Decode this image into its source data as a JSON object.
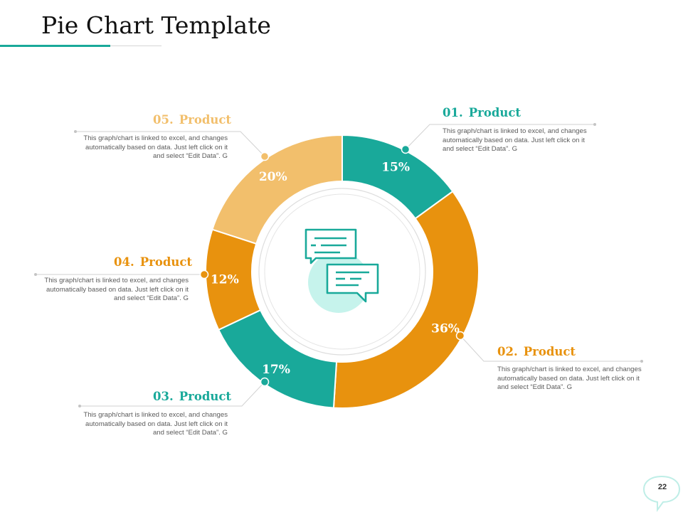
{
  "title": "Pie Chart Template",
  "page_number": "22",
  "colors": {
    "teal": "#19a99a",
    "orange": "#e8920e",
    "light_orange": "#f2bf6c"
  },
  "chart_data": {
    "type": "pie",
    "subtype": "donut",
    "center_icon": "chat-bubbles-icon",
    "slices": [
      {
        "num": "01.",
        "label": "Product",
        "value": 15,
        "value_label": "15%",
        "color": "#19a99a",
        "description": "This graph/chart is linked to excel, and changes automatically based on data. Just left click on it and select “Edit Data”. G"
      },
      {
        "num": "02.",
        "label": "Product",
        "value": 36,
        "value_label": "36%",
        "color": "#e8920e",
        "description": "This graph/chart is linked to excel, and changes automatically based on data. Just left click on it and select “Edit Data”. G"
      },
      {
        "num": "03.",
        "label": "Product",
        "value": 17,
        "value_label": "17%",
        "color": "#19a99a",
        "description": "This graph/chart is linked to excel, and changes automatically based on data. Just left click on it and select “Edit Data”. G"
      },
      {
        "num": "04.",
        "label": "Product",
        "value": 12,
        "value_label": "12%",
        "color": "#e8920e",
        "description": "This graph/chart is linked to excel, and changes automatically based on data. Just left click on it and select “Edit Data”. G"
      },
      {
        "num": "05.",
        "label": "Product",
        "value": 20,
        "value_label": "20%",
        "color": "#f2bf6c",
        "description": "This graph/chart is linked to excel, and changes automatically based on data. Just left click on it and select “Edit Data”. G"
      }
    ]
  }
}
